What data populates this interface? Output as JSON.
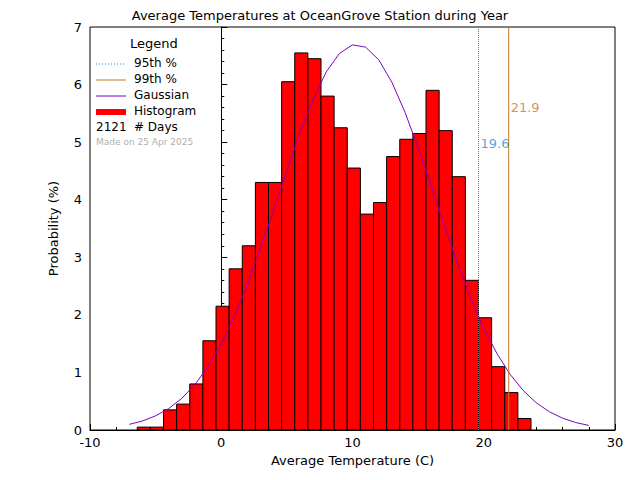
{
  "chart_data": {
    "type": "histogram",
    "title": "Average Temperatures at OceanGrove Station during Year",
    "xlabel": "Average Temperature (C)",
    "ylabel": "Probability (%)",
    "xlim": [
      -10,
      30
    ],
    "xticks": [
      -10,
      0,
      10,
      20,
      30
    ],
    "ylim": [
      0,
      7
    ],
    "yticks": [
      0,
      1,
      2,
      3,
      4,
      5,
      6,
      7
    ],
    "legend": "upper left",
    "legend_title": "Legend",
    "series": [
      {
        "name": "Gaussian",
        "type": "line",
        "color": "#8000c0",
        "x": [
          -7,
          -6,
          -5,
          -4,
          -3,
          -2,
          -1,
          0,
          1,
          2,
          3,
          4,
          5,
          6,
          7,
          8,
          9,
          10,
          11,
          12,
          13,
          14,
          15,
          16,
          17,
          18,
          19,
          20,
          21,
          22,
          23,
          24,
          25,
          26,
          27,
          28
        ],
        "values": [
          0.098,
          0.157,
          0.246,
          0.373,
          0.551,
          0.791,
          1.103,
          1.498,
          1.975,
          2.533,
          3.156,
          3.824,
          4.504,
          5.16,
          5.74,
          6.22,
          6.54,
          6.69,
          6.65,
          6.43,
          6.04,
          5.52,
          4.9,
          4.23,
          3.55,
          2.9,
          2.3,
          1.77,
          1.33,
          0.969,
          0.687,
          0.473,
          0.317,
          0.206,
          0.13,
          0.08
        ]
      },
      {
        "name": "Histogram",
        "type": "bar",
        "color": "#ff0000",
        "bins": [
          -6.4,
          -5.4,
          -4.4,
          -3.4,
          -2.4,
          -1.4,
          -0.4,
          0.6,
          1.6,
          2.6,
          3.6,
          4.6,
          5.6,
          6.6,
          7.6,
          8.6,
          9.6,
          10.6,
          11.6,
          12.6,
          13.6,
          14.6,
          15.6,
          16.6,
          17.6,
          18.6,
          19.6,
          20.6,
          21.6,
          22.6,
          23.6
        ],
        "values": [
          0.05,
          0.05,
          0.35,
          0.45,
          0.8,
          1.55,
          2.15,
          2.8,
          3.2,
          4.3,
          4.3,
          6.05,
          6.55,
          6.45,
          5.8,
          5.25,
          4.55,
          3.75,
          3.95,
          4.75,
          5.05,
          5.15,
          5.9,
          5.2,
          4.4,
          2.6,
          1.95,
          1.1,
          0.65,
          0.2
        ]
      }
    ],
    "percentiles": [
      {
        "name": "95th %",
        "value": 19.6,
        "color": "#1f8fcf",
        "line_style": "dotted"
      },
      {
        "name": "99th %",
        "value": 21.9,
        "color": "#c87828",
        "line_style": "solid"
      }
    ],
    "days": 2121,
    "days_label": "# Days",
    "made_on": "Made on 25 Apr 2025"
  }
}
